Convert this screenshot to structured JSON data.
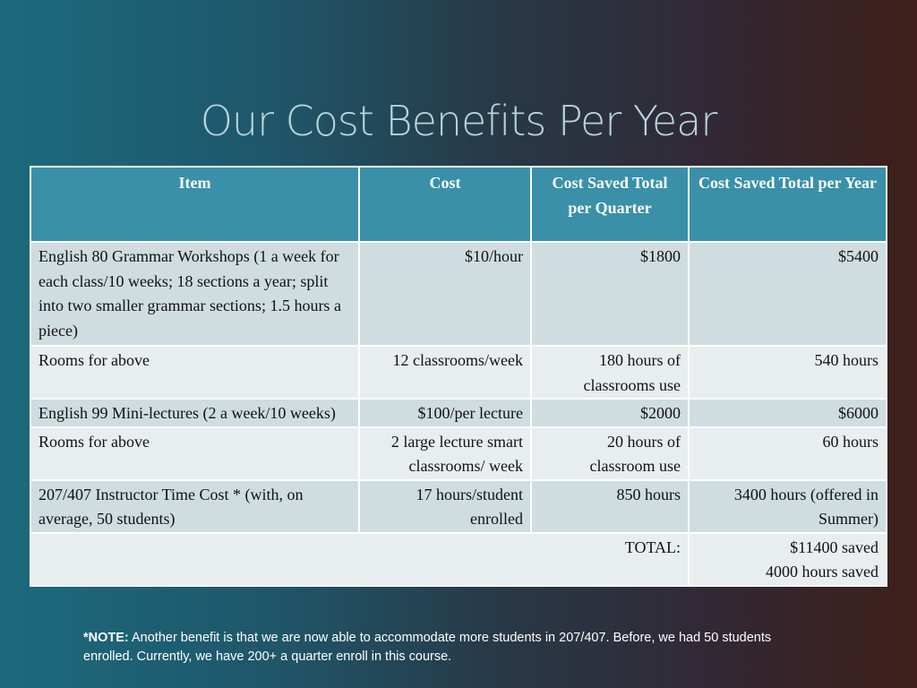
{
  "slide": {
    "title": "Our Cost Benefits Per Year"
  },
  "table": {
    "headers": [
      "Item",
      "Cost",
      "Cost Saved Total per Quarter",
      "Cost Saved Total per Year"
    ],
    "rows": [
      [
        "English 80 Grammar Workshops (1 a week for each class/10 weeks; 18 sections a year; split into two smaller grammar sections; 1.5 hours a piece)",
        "$10/hour",
        "$1800",
        "$5400"
      ],
      [
        "Rooms for above",
        "12 classrooms/week",
        "180 hours of classrooms use",
        "540 hours"
      ],
      [
        "English 99 Mini-lectures (2 a week/10 weeks)",
        "$100/per lecture",
        "$2000",
        "$6000"
      ],
      [
        "Rooms for above",
        "2 large lecture smart classrooms/ week",
        "20 hours of classroom use",
        "60 hours"
      ],
      [
        "207/407 Instructor Time Cost * (with, on average, 50 students)",
        "17 hours/student enrolled",
        "850 hours",
        "3400 hours (offered in Summer)"
      ]
    ],
    "total": {
      "label": "TOTAL:",
      "line1": "$11400 saved",
      "line2": "4000 hours saved"
    }
  },
  "note": {
    "label": "*NOTE:",
    "text": "Another benefit is that we are now able to accommodate more students in 207/407. Before, we had 50 students enrolled.  Currently, we have 200+ a quarter enroll in this course."
  },
  "colors": {
    "header_bg": "#3990a8",
    "row_dark": "#cfdde0",
    "row_light": "#e8eeef",
    "title": "#b7d3dc"
  }
}
